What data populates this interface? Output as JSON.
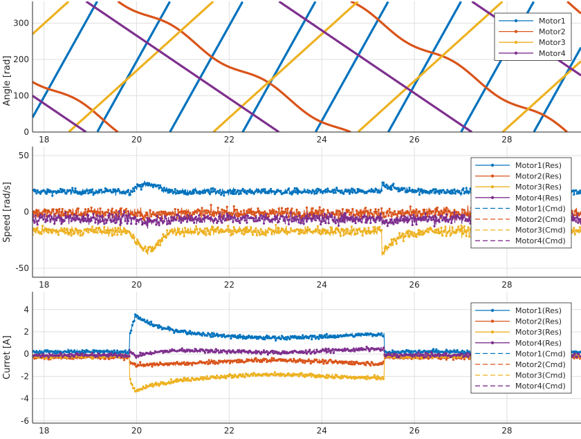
{
  "colors": {
    "Motor1": "#0072BD",
    "Motor2": "#D95319",
    "Motor3": "#EDB120",
    "Motor4": "#7E2F8E",
    "grid": "#dfdfdf",
    "axis": "#262626"
  },
  "chart_data": [
    {
      "type": "line",
      "ylabel": "Angle [rad]",
      "xlim": [
        17.75,
        29.6
      ],
      "ylim": [
        0,
        360
      ],
      "xticks": [
        18,
        20,
        22,
        24,
        26,
        28
      ],
      "yticks": [
        0,
        100,
        200,
        300
      ],
      "grid": true,
      "legend_position": "top-right",
      "series": [
        {
          "name": "Motor1",
          "kind": "sawtooth",
          "start": 40,
          "rate": 3180,
          "marker": true
        },
        {
          "name": "Motor2",
          "kind": "sawtooth-smooth",
          "start": 150,
          "rate": -270,
          "marker": true
        },
        {
          "name": "Motor3",
          "kind": "sawtooth",
          "start": 270,
          "rate": 1600,
          "marker": true
        },
        {
          "name": "Motor4",
          "kind": "sawtooth",
          "start": 100,
          "rate": -1200,
          "marker": true
        }
      ]
    },
    {
      "type": "line",
      "ylabel": "Speed [rad/s]",
      "xlim": [
        17.75,
        29.6
      ],
      "ylim": [
        -58,
        58
      ],
      "xticks": [
        18,
        20,
        22,
        24,
        26,
        28
      ],
      "yticks": [
        -50,
        0,
        50
      ],
      "grid": true,
      "legend_position": "top-right",
      "event_times": [
        19.85,
        25.3
      ],
      "series": [
        {
          "name": "Motor1(Res)",
          "mean": 18,
          "noise": 2.0,
          "transient_peak": 26,
          "marker": true
        },
        {
          "name": "Motor2(Res)",
          "mean": -1,
          "noise": 3.5,
          "transient_peak": -3,
          "marker": true
        },
        {
          "name": "Motor3(Res)",
          "mean": -17,
          "noise": 3.0,
          "transient_peak": -38,
          "marker": true
        },
        {
          "name": "Motor4(Res)",
          "mean": -6,
          "noise": 3.5,
          "transient_peak": -9,
          "marker": true
        },
        {
          "name": "Motor1(Cmd)",
          "dashed": true
        },
        {
          "name": "Motor2(Cmd)",
          "dashed": true
        },
        {
          "name": "Motor3(Cmd)",
          "dashed": true
        },
        {
          "name": "Motor4(Cmd)",
          "dashed": true
        }
      ]
    },
    {
      "type": "line",
      "ylabel": "Curret [A]",
      "xlim": [
        17.75,
        29.6
      ],
      "ylim": [
        -6.2,
        5.6
      ],
      "xticks": [
        18,
        20,
        22,
        24,
        26,
        28
      ],
      "yticks": [
        -6,
        -4,
        -2,
        0,
        2,
        4
      ],
      "grid": true,
      "legend_position": "top-right",
      "event_times": [
        19.85,
        25.35
      ],
      "series": [
        {
          "name": "Motor1(Res)",
          "idle": 0.2,
          "peak": 3.8,
          "plateau": 1.6,
          "marker": true
        },
        {
          "name": "Motor2(Res)",
          "idle": -0.3,
          "peak": -0.9,
          "plateau": -0.7,
          "marker": true
        },
        {
          "name": "Motor3(Res)",
          "idle": -0.2,
          "peak": -3.6,
          "plateau": -2.0,
          "marker": true
        },
        {
          "name": "Motor4(Res)",
          "idle": -0.1,
          "peak": -0.5,
          "plateau": 0.3,
          "marker": true
        },
        {
          "name": "Motor1(Cmd)",
          "dashed": true
        },
        {
          "name": "Motor2(Cmd)",
          "dashed": true
        },
        {
          "name": "Motor3(Cmd)",
          "dashed": true
        },
        {
          "name": "Motor4(Cmd)",
          "dashed": true
        }
      ]
    }
  ]
}
